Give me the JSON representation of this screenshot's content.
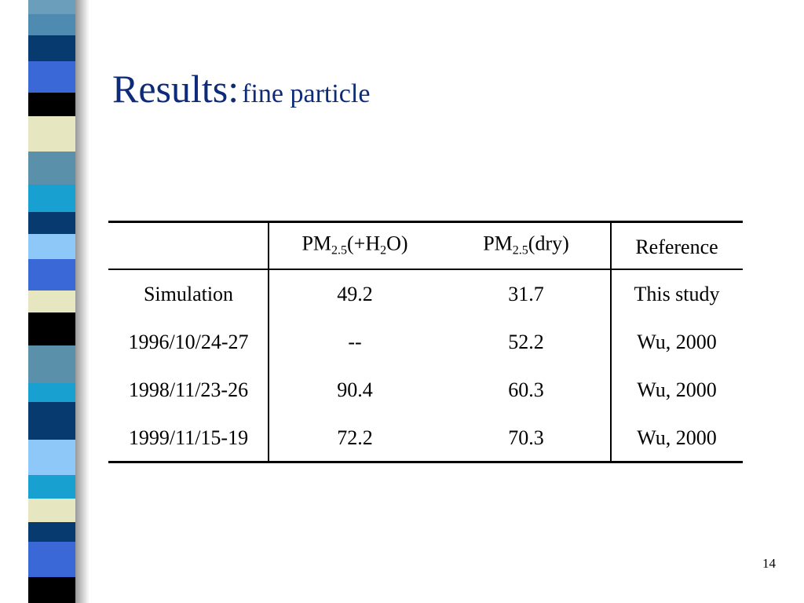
{
  "title": {
    "main": "Results:",
    "sub": "fine particle"
  },
  "table": {
    "header": [
      [
        "PM",
        "2.5",
        "(+H",
        "2",
        "O)"
      ],
      [
        "PM",
        "2.5",
        "(dry)"
      ],
      [
        "Reference"
      ]
    ],
    "rows": [
      [
        "Simulation",
        49.2,
        31.7,
        "This study"
      ],
      [
        "1996/10/24-27",
        "--",
        52.2,
        "Wu, 2000"
      ],
      [
        "1998/11/23-26",
        90.4,
        60.3,
        "Wu, 2000"
      ],
      [
        "1999/11/15-19",
        72.2,
        70.3,
        "Wu, 2000"
      ]
    ]
  },
  "page_number": 14
}
